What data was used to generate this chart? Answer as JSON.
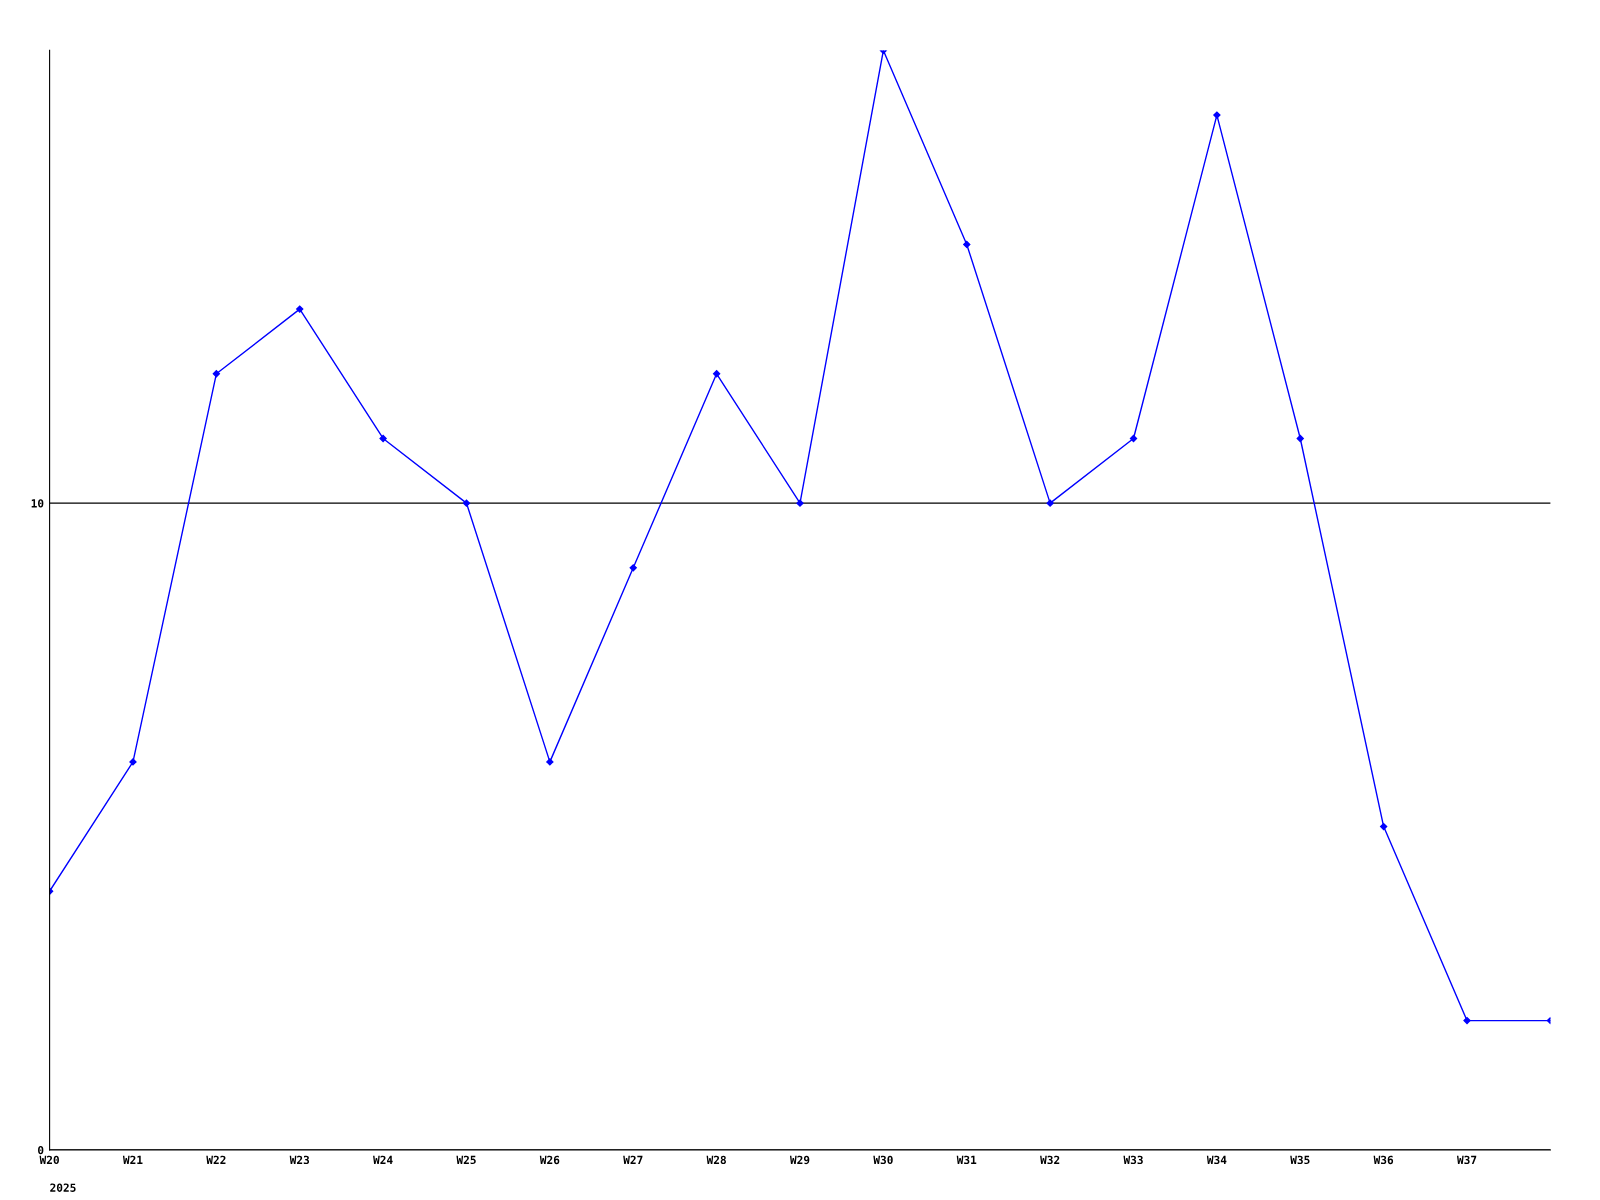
{
  "chart_data": {
    "type": "line",
    "categories": [
      "W20",
      "W21",
      "W22",
      "W23",
      "W24",
      "W25",
      "W26",
      "W27",
      "W28",
      "W29",
      "W30",
      "W31",
      "W32",
      "W33",
      "W34",
      "W35",
      "W36",
      "W37",
      null
    ],
    "series": [
      {
        "color": "#0000ff",
        "values": [
          4,
          6,
          12,
          13,
          11,
          10,
          6,
          9,
          12,
          10,
          17,
          14,
          10,
          11,
          16,
          11,
          5,
          2,
          2
        ]
      }
    ],
    "ylim": [
      0,
      17
    ],
    "yticks": [
      0,
      10
    ],
    "grid": "y",
    "marker": "diamond",
    "line_style": "solid",
    "annotations": [
      "2025"
    ]
  }
}
